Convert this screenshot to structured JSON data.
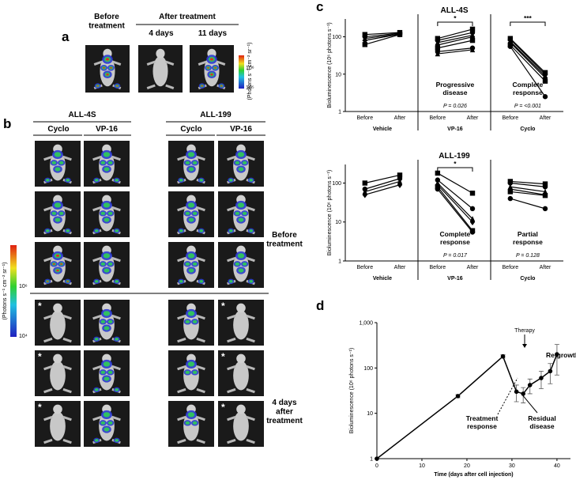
{
  "panel_labels": [
    "a",
    "b",
    "c",
    "d"
  ],
  "panel_a": {
    "before": "Before\ntreatment",
    "after": "After treatment",
    "day4": "4 days",
    "day11": "11 days",
    "scale_label": "(Photons s⁻¹ cm⁻² sr⁻¹)",
    "scale_high": "10⁶",
    "scale_low": "10⁵"
  },
  "panel_b": {
    "line1": "ALL-4S",
    "line2": "ALL-199",
    "cyclo": "Cyclo",
    "vp16": "VP-16",
    "before": "Before\ntreatment",
    "after": "4 days\nafter\ntreatment",
    "asterisk": "*",
    "scale_label": "(Photons s⁻¹ cm⁻² sr⁻¹)",
    "scale_high": "10⁶",
    "scale_low": "10⁴"
  },
  "chart_data": [
    {
      "type": "paired",
      "title": "ALL-4S",
      "ylabel": "Bioluminescence (10⁶ photons s⁻¹)",
      "log_y": true,
      "ylim": [
        1,
        300
      ],
      "yticks": [
        1,
        10,
        100
      ],
      "xticks": [
        "Before",
        "After"
      ],
      "color": "#000000",
      "groups": [
        {
          "name": "Vehicle",
          "before": [
            115,
            100,
            90,
            80,
            62
          ],
          "after": [
            130,
            125,
            120,
            118,
            115
          ]
        },
        {
          "name": "VP-16",
          "before": [
            90,
            80,
            70,
            60,
            50,
            40,
            35
          ],
          "after": [
            160,
            130,
            110,
            100,
            80,
            50,
            45
          ],
          "significance": "*",
          "outcome": "Progressive\ndisease",
          "p_value": "P = 0.026"
        },
        {
          "name": "Cyclo",
          "before": [
            90,
            85,
            75,
            70,
            60,
            55
          ],
          "after": [
            11,
            10,
            9,
            8,
            6.5,
            2.5
          ],
          "significance": "***",
          "outcome": "Complete\nresponse",
          "p_value": "P = <0.001"
        }
      ]
    },
    {
      "type": "paired",
      "title": "ALL-199",
      "ylabel": "Bioluminescence (10⁶ photons s⁻¹)",
      "log_y": true,
      "ylim": [
        1,
        300
      ],
      "yticks": [
        1,
        10,
        100
      ],
      "xticks": [
        "Before",
        "After"
      ],
      "color": "#000000",
      "groups": [
        {
          "name": "Vehicle",
          "before": [
            100,
            70,
            60,
            50
          ],
          "after": [
            160,
            130,
            110,
            90
          ]
        },
        {
          "name": "VP-16",
          "before": [
            180,
            120,
            100,
            90,
            80,
            70
          ],
          "after": [
            55,
            22,
            12,
            10,
            6,
            5.5
          ],
          "significance": "*",
          "outcome": "Complete\nresponse",
          "p_value": "P = 0.017"
        },
        {
          "name": "Cyclo",
          "before": [
            110,
            100,
            80,
            70,
            60,
            40
          ],
          "after": [
            95,
            80,
            60,
            50,
            48,
            22
          ],
          "outcome": "Partial\nresponse",
          "p_value": "P = 0.128"
        }
      ]
    },
    {
      "type": "line",
      "ylabel": "Bioluminescence (10⁶ photons s⁻¹)",
      "xlabel": "Time (days after cell injection)",
      "log_y": true,
      "color": "#000000",
      "x": [
        0,
        18,
        28,
        31,
        32.5,
        34,
        36.5,
        38.5,
        40
      ],
      "values": [
        1,
        24,
        180,
        30,
        27,
        42,
        60,
        85,
        200
      ],
      "errors": [
        0,
        2,
        15,
        12,
        10,
        15,
        25,
        40,
        130
      ],
      "xlim": [
        0,
        43
      ],
      "xticks": [
        0,
        10,
        20,
        30,
        40
      ],
      "ylim": [
        1,
        1000
      ],
      "yticks": [
        1,
        10,
        100,
        {
          "value": 1000,
          "label": "1,000"
        }
      ],
      "annotations": [
        "Therapy",
        "Re-growth",
        "Treatment\nresponse",
        "Residual\ndisease"
      ]
    }
  ]
}
